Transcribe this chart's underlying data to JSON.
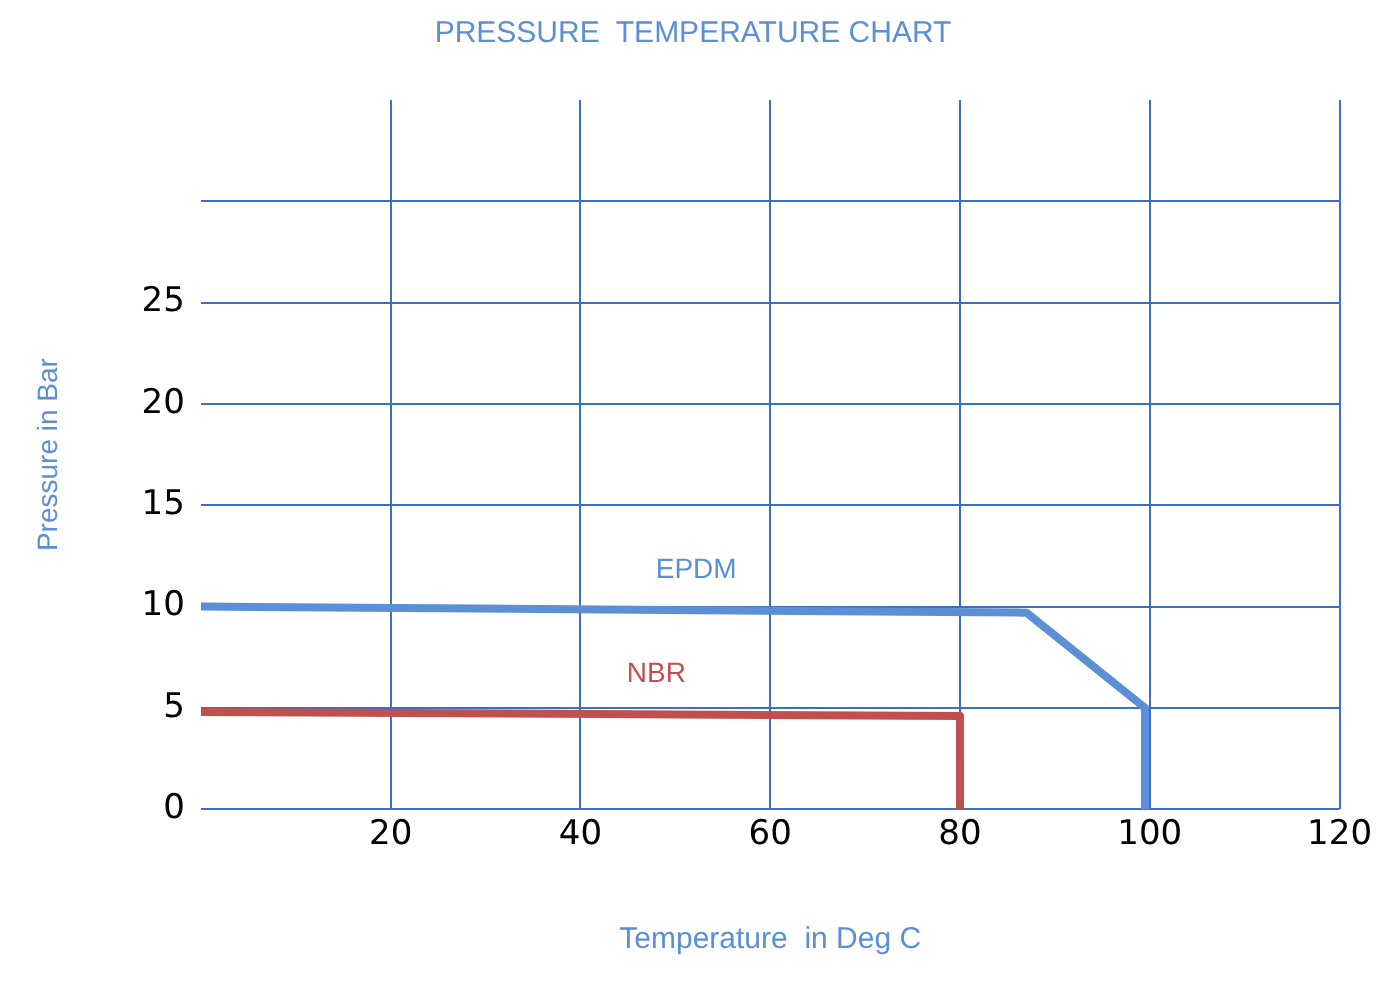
{
  "chart_data": {
    "type": "line",
    "title": "PRESSURE  TEMPERATURE CHART",
    "xlabel": "Temperature  in Deg C",
    "ylabel": "Pressure in Bar",
    "xlim": [
      0,
      120
    ],
    "xticks": [
      20,
      40,
      60,
      80,
      100,
      120
    ],
    "ylim": [
      0,
      35
    ],
    "yticks": [
      0,
      5,
      10,
      15,
      20,
      25,
      {
        "value": 30,
        "label": null
      }
    ],
    "grid": true,
    "legend": false,
    "marker": "none",
    "line_style": "solid",
    "series": [
      {
        "name": "EPDM",
        "color": "#5b8fd6",
        "x": [
          0,
          87,
          99.5,
          99.5
        ],
        "values": [
          10,
          9.7,
          5,
          0
        ]
      },
      {
        "name": "NBR",
        "color": "#c0504d",
        "x": [
          0,
          80,
          80
        ],
        "values": [
          4.8,
          4.6,
          0
        ]
      }
    ]
  }
}
